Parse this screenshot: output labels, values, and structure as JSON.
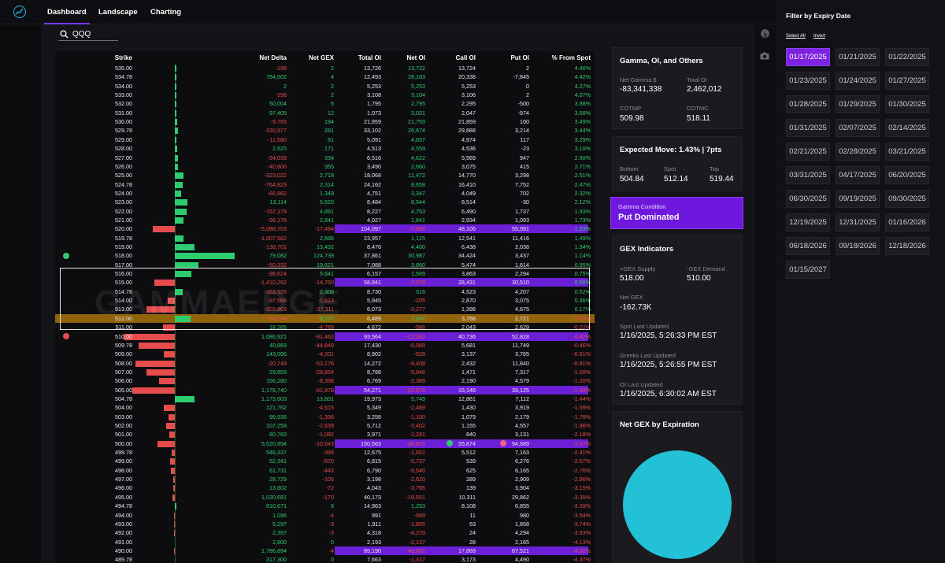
{
  "nav": {
    "dashboard": "Dashboard",
    "landscape": "Landscape",
    "charting": "Charting"
  },
  "search": {
    "value": "QQQ"
  },
  "watermark": "GAMMAEDGE",
  "table": {
    "headers": [
      "Strike",
      "Net Delta",
      "Net GEX",
      "Total OI",
      "Net OI",
      "Call OI",
      "Put OI",
      "% From Spot"
    ],
    "rows": [
      [
        "535.00",
        "-198",
        "2",
        "13,726",
        "13,722",
        "13,724",
        "2",
        "4.46%"
      ],
      [
        "534.78",
        "784,502",
        "4",
        "12,493",
        "28,183",
        "20,338",
        "-7,845",
        "4.42%"
      ],
      [
        "534.00",
        "2",
        "2",
        "5,253",
        "5,253",
        "5,253",
        "0",
        "4.27%"
      ],
      [
        "533.00",
        "-198",
        "2",
        "3,108",
        "3,104",
        "3,106",
        "2",
        "4.07%"
      ],
      [
        "532.00",
        "50,004",
        "5",
        "1,795",
        "2,795",
        "2,295",
        "-500",
        "3.88%"
      ],
      [
        "531.00",
        "97,405",
        "12",
        "1,073",
        "3,021",
        "2,047",
        "-974",
        "3.68%"
      ],
      [
        "530.00",
        "-9,765",
        "194",
        "21,959",
        "21,759",
        "21,859",
        "100",
        "3.49%"
      ],
      [
        "529.78",
        "-320,977",
        "281",
        "33,102",
        "26,674",
        "29,888",
        "3,214",
        "3.44%"
      ],
      [
        "529.00",
        "-11,580",
        "91",
        "5,091",
        "4,857",
        "4,974",
        "117",
        "3.29%"
      ],
      [
        "528.00",
        "2,525",
        "171",
        "4,513",
        "4,559",
        "4,536",
        "-23",
        "3.10%"
      ],
      [
        "527.00",
        "-94,039",
        "334",
        "6,516",
        "4,622",
        "5,569",
        "947",
        "2.90%"
      ],
      [
        "526.00",
        "-40,806",
        "355",
        "3,490",
        "2,660",
        "3,075",
        "415",
        "2.71%"
      ],
      [
        "525.00",
        "-323,022",
        "2,718",
        "18,068",
        "11,472",
        "14,770",
        "3,298",
        "2.51%"
      ],
      [
        "524.78",
        "-764,829",
        "2,314",
        "24,162",
        "8,658",
        "16,410",
        "7,752",
        "2.47%"
      ],
      [
        "524.00",
        "-66,962",
        "1,349",
        "4,751",
        "3,347",
        "4,049",
        "702",
        "2.32%"
      ],
      [
        "523.00",
        "13,114",
        "5,620",
        "8,484",
        "8,544",
        "8,514",
        "-30",
        "2.12%"
      ],
      [
        "522.00",
        "-157,179",
        "4,891",
        "8,227",
        "4,753",
        "6,490",
        "1,737",
        "1.93%"
      ],
      [
        "521.00",
        "-96,178",
        "2,841",
        "4,027",
        "1,841",
        "2,934",
        "1,093",
        "1.73%"
      ],
      [
        "520.00",
        "-5,088,703",
        "-17,484",
        "104,097",
        "-7,885",
        "48,106",
        "55,991",
        "1.53%"
      ],
      [
        "519.78",
        "-1,007,582",
        "2,686",
        "23,957",
        "1,125",
        "12,541",
        "11,416",
        "1.49%"
      ],
      [
        "519.00",
        "-138,701",
        "13,432",
        "8,476",
        "4,400",
        "6,438",
        "2,038",
        "1.34%"
      ],
      [
        "518.00",
        "79,082",
        "124,739",
        "37,861",
        "30,987",
        "34,424",
        "3,437",
        "1.14%"
      ],
      [
        "517.00",
        "-50,332",
        "19,621",
        "7,088",
        "3,860",
        "5,474",
        "1,614",
        "0.95%"
      ],
      [
        "516.00",
        "-98,624",
        "9,641",
        "6,157",
        "1,569",
        "3,863",
        "2,294",
        "0.75%"
      ],
      [
        "515.00",
        "-1,410,292",
        "-14,760",
        "58,941",
        "-2,079",
        "28,431",
        "30,510",
        "0.56%"
      ],
      [
        "514.78",
        "-163,926",
        "2,306",
        "8,730",
        "316",
        "4,523",
        "4,207",
        "0.52%"
      ],
      [
        "514.00",
        "-97,568",
        "-1,613",
        "5,945",
        "-205",
        "2,870",
        "3,075",
        "0.36%"
      ],
      [
        "513.00",
        "-203,803",
        "-27,311",
        "6,073",
        "-3,277",
        "1,398",
        "4,675",
        "0.17%"
      ],
      [
        "512.00",
        "-84,248",
        "8,237",
        "6,489",
        "1,047",
        "3,768",
        "2,721",
        "-0.03%"
      ],
      [
        "511.00",
        "18,265",
        "-4,789",
        "4,672",
        "-586",
        "2,043",
        "2,629",
        "-0.22%"
      ],
      [
        "510.00",
        "1,086,921",
        "-91,462",
        "93,564",
        "-12,092",
        "40,736",
        "52,828",
        "-0.42%"
      ],
      [
        "509.78",
        "40,869",
        "-44,849",
        "17,430",
        "-6,068",
        "5,681",
        "11,749",
        "-0.46%"
      ],
      [
        "509.00",
        "143,096",
        "-4,201",
        "8,902",
        "-628",
        "3,137",
        "3,765",
        "-0.61%"
      ],
      [
        "508.00",
        "-20,749",
        "-53,176",
        "14,272",
        "-9,408",
        "2,432",
        "11,840",
        "-0.81%"
      ],
      [
        "507.00",
        "29,859",
        "-28,664",
        "8,788",
        "-5,846",
        "1,471",
        "7,317",
        "-1.00%"
      ],
      [
        "506.00",
        "156,280",
        "-8,398",
        "6,769",
        "-2,389",
        "2,190",
        "4,579",
        "-1.20%"
      ],
      [
        "505.00",
        "1,176,740",
        "-61,978",
        "54,271",
        "-23,979",
        "15,146",
        "39,125",
        "-1.39%"
      ],
      [
        "504.78",
        "1,173,603",
        "13,801",
        "19,973",
        "5,749",
        "12,861",
        "7,112",
        "-1.44%"
      ],
      [
        "504.00",
        "121,762",
        "-4,515",
        "5,349",
        "-2,489",
        "1,430",
        "3,919",
        "-1.59%"
      ],
      [
        "503.00",
        "99,936",
        "-1,336",
        "3,258",
        "-1,100",
        "1,079",
        "2,179",
        "-1.78%"
      ],
      [
        "502.00",
        "107,258",
        "-2,639",
        "5,712",
        "-3,402",
        "1,155",
        "4,557",
        "-1.98%"
      ],
      [
        "501.00",
        "80,760",
        "-1,082",
        "3,971",
        "-2,291",
        "840",
        "3,131",
        "-2.18%"
      ],
      [
        "500.00",
        "5,520,894",
        "-10,643",
        "150,563",
        "-38,815",
        "55,874",
        "94,689",
        "-2.37%"
      ],
      [
        "499.78",
        "546,337",
        "-399",
        "12,675",
        "-1,651",
        "5,512",
        "7,163",
        "-2.41%"
      ],
      [
        "499.00",
        "52,341",
        "-870",
        "6,815",
        "-5,737",
        "539",
        "6,276",
        "-2.57%"
      ],
      [
        "498.00",
        "61,731",
        "-443",
        "6,790",
        "-5,540",
        "625",
        "6,165",
        "-2.76%"
      ],
      [
        "497.00",
        "28,729",
        "-105",
        "3,198",
        "-2,620",
        "289",
        "2,909",
        "-2.96%"
      ],
      [
        "496.00",
        "13,802",
        "-72",
        "4,043",
        "-3,765",
        "139",
        "3,904",
        "-3.15%"
      ],
      [
        "495.00",
        "1,030,681",
        "-170",
        "40,173",
        "-19,551",
        "10,311",
        "29,862",
        "-3.35%"
      ],
      [
        "494.78",
        "810,671",
        "9",
        "14,963",
        "1,253",
        "8,108",
        "6,855",
        "-3.39%"
      ],
      [
        "494.00",
        "1,096",
        "-4",
        "991",
        "-969",
        "11",
        "980",
        "-3.54%"
      ],
      [
        "493.00",
        "5,297",
        "-3",
        "1,911",
        "-1,805",
        "53",
        "1,858",
        "-3.74%"
      ],
      [
        "492.00",
        "2,397",
        "-3",
        "4,318",
        "-4,270",
        "24",
        "4,294",
        "-3.93%"
      ],
      [
        "491.00",
        "2,800",
        "0",
        "2,193",
        "-2,137",
        "28",
        "2,165",
        "-4.13%"
      ],
      [
        "490.00",
        "1,786,894",
        "-4",
        "85,190",
        "-49,852",
        "17,669",
        "67,521",
        "-4.32%"
      ],
      [
        "489.78",
        "317,300",
        "0",
        "7,663",
        "-1,317",
        "3,173",
        "4,490",
        "-4.37%"
      ]
    ]
  },
  "gamma_card": {
    "title": "Gamma, OI, and Others",
    "net_gamma_label": "Net Gamma $",
    "net_gamma_value": "-83,341,338",
    "total_oi_label": "Total OI",
    "total_oi_value": "2,462,012",
    "cotmp_label": "COTMP",
    "cotmp_value": "509.98",
    "cotmc_label": "COTMC",
    "cotmc_value": "518.11"
  },
  "expected_move": {
    "title": "Expected Move: 1.43% | 7pts",
    "bottom_label": "Bottom",
    "bottom_value": "504.84",
    "spot_label": "Spot",
    "spot_value": "512.14",
    "top_label": "Top",
    "top_value": "519.44"
  },
  "gamma_condition": {
    "label": "Gamma Condition",
    "value": "Put Dominated"
  },
  "gex_indicators": {
    "title": "GEX Indicators",
    "supply_label": "+GEX Supply",
    "supply_value": "518.00",
    "demand_label": "-GEX Demand",
    "demand_value": "510.00",
    "net_gex_label": "Net GEX",
    "net_gex_value": "-162.73K",
    "spot_updated_label": "Spot Last Updated",
    "spot_updated_value": "1/16/2025, 5:26:33 PM EST",
    "greeks_updated_label": "Greeks Last Updated",
    "greeks_updated_value": "1/16/2025, 5:26:55 PM EST",
    "oi_updated_label": "OI Last Updated",
    "oi_updated_value": "1/16/2025, 6:30:02 AM EST"
  },
  "net_gex_expiration": {
    "title": "Net GEX by Expiration"
  },
  "filter": {
    "title": "Filter by Expiry Date",
    "select_all": "Select All",
    "invert": "Invert",
    "dates": [
      "01/17/2025",
      "01/21/2025",
      "01/22/2025",
      "01/23/2025",
      "01/24/2025",
      "01/27/2025",
      "01/28/2025",
      "01/29/2025",
      "01/30/2025",
      "01/31/2025",
      "02/07/2025",
      "02/14/2025",
      "02/21/2025",
      "02/28/2025",
      "03/21/2025",
      "03/31/2025",
      "04/17/2025",
      "06/20/2025",
      "06/30/2025",
      "09/19/2025",
      "09/30/2025",
      "12/19/2025",
      "12/31/2025",
      "01/16/2026",
      "06/18/2026",
      "09/18/2026",
      "12/18/2026",
      "01/15/2027"
    ],
    "selected": "01/17/2025"
  },
  "colors": {
    "accent": "#7c22e0",
    "positive": "#2ecc71",
    "negative": "#e74c4c",
    "pie": "#22c1d6",
    "current_row": "#be820a"
  },
  "icons": {
    "logo": "chart-logo-icon",
    "search": "search-icon",
    "collapse": "chevron-right-icon",
    "camera": "camera-icon"
  }
}
